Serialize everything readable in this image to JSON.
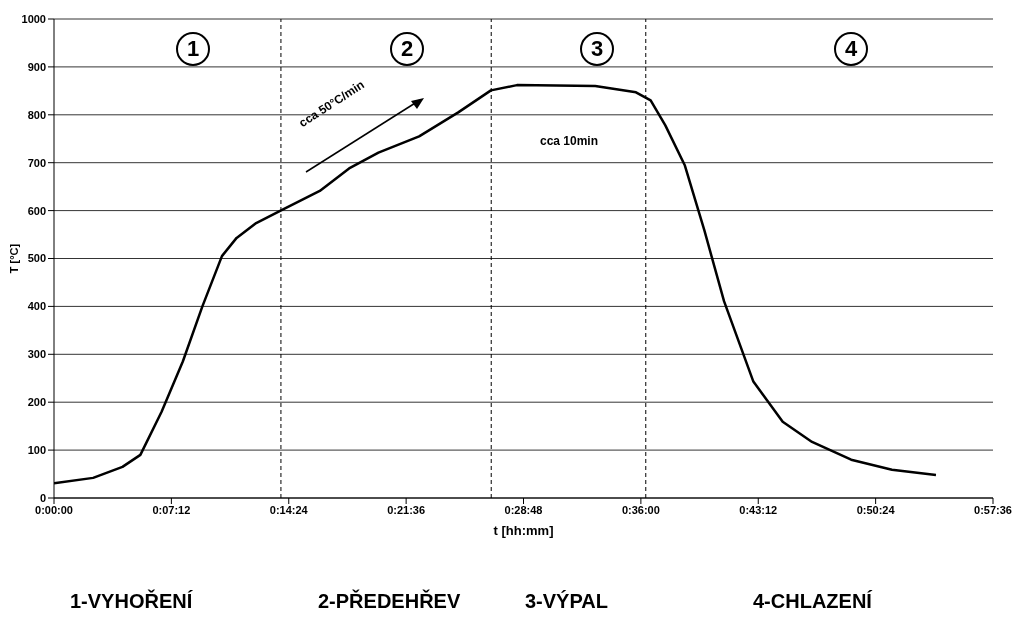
{
  "chart_data": {
    "type": "line",
    "xlabel": "t [hh:mm]",
    "ylabel": "T [°C]",
    "x": [
      0,
      0.04,
      0.07,
      0.0883,
      0.11,
      0.1317,
      0.1517,
      0.1717,
      0.1867,
      0.2067,
      0.2317,
      0.2717,
      0.3017,
      0.3317,
      0.3733,
      0.4133,
      0.4467,
      0.4733,
      0.5533,
      0.595,
      0.61,
      0.625,
      0.645,
      0.665,
      0.685,
      0.715,
      0.745,
      0.775,
      0.815,
      0.8567,
      0.9017
    ],
    "series": [
      {
        "color": "#000000",
        "values": [
          31,
          42,
          65,
          90,
          180,
          285,
          400,
          505,
          543,
          574,
          600,
          641,
          688,
          721,
          755,
          805,
          851,
          862,
          860,
          847,
          830,
          778,
          694,
          558,
          411,
          243,
          159,
          117,
          80,
          59,
          48
        ]
      }
    ],
    "xlim": [
      0,
      0.96
    ],
    "xticks": [
      {
        "value": 0,
        "label": "0:00:00"
      },
      {
        "value": 0.12,
        "label": "0:07:12"
      },
      {
        "value": 0.24,
        "label": "0:14:24"
      },
      {
        "value": 0.36,
        "label": "0:21:36"
      },
      {
        "value": 0.48,
        "label": "0:28:48"
      },
      {
        "value": 0.6,
        "label": "0:36:00"
      },
      {
        "value": 0.72,
        "label": "0:43:12"
      },
      {
        "value": 0.84,
        "label": "0:50:24"
      },
      {
        "value": 0.96,
        "label": "0:57:36"
      }
    ],
    "ylim": [
      0,
      1000
    ],
    "yticks": [
      0,
      100,
      200,
      300,
      400,
      500,
      600,
      700,
      800,
      900,
      1000
    ],
    "grid": "y",
    "marker": "none",
    "line_style": "solid",
    "ref_lines": [
      {
        "axis": "x",
        "value": 0.232,
        "color": "#000000",
        "line_style": "dashed"
      },
      {
        "axis": "x",
        "value": 0.447,
        "color": "#000000",
        "line_style": "dashed"
      },
      {
        "axis": "x",
        "value": 0.605,
        "color": "#000000",
        "line_style": "dashed"
      }
    ],
    "annotations": [
      "1",
      "2",
      "3",
      "4",
      "cca 50°C/min",
      "cca 10min",
      "1-VYHOŘENÍ",
      "2-PŘEDEHŘEV",
      "3-VÝPAL",
      "4-CHLAZENÍ"
    ]
  }
}
